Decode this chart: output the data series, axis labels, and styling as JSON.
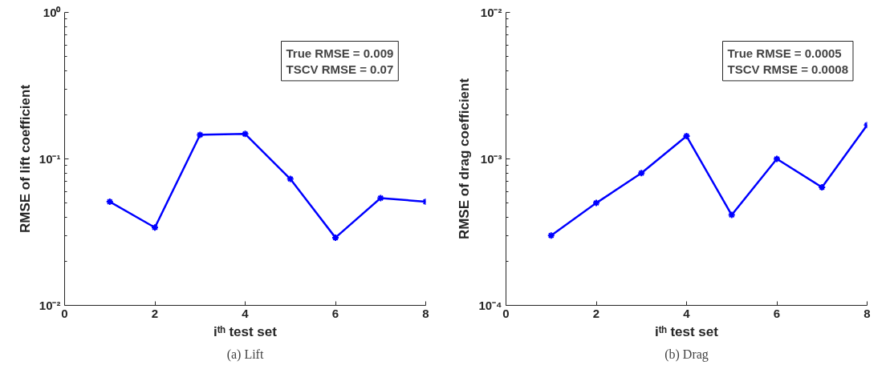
{
  "chart_data": [
    {
      "type": "line",
      "xlabel": "iᵗʰ test set",
      "ylabel": "RMSE of lift coefficient",
      "x": [
        1,
        2,
        3,
        4,
        5,
        6,
        7,
        8
      ],
      "series": [
        {
          "color": "#0000ff",
          "values": [
            0.051,
            0.034,
            0.146,
            0.148,
            0.073,
            0.029,
            0.054,
            0.051
          ]
        }
      ],
      "log": "y",
      "xlim": [
        0,
        8
      ],
      "xticks": [
        0,
        2,
        4,
        6,
        8
      ],
      "ylim": [
        0.01,
        1
      ],
      "yticks": [
        {
          "value": 0.01,
          "label": "10⁻²"
        },
        {
          "value": 0.1,
          "label": "10⁻¹"
        },
        {
          "value": 1,
          "label": "10⁰"
        }
      ],
      "grid": false,
      "marker": "cross",
      "line_style": "solid",
      "annotations": [
        "True RMSE = 0.009",
        "TSCV RMSE = 0.07",
        "(a) Lift"
      ]
    },
    {
      "type": "line",
      "xlabel": "iᵗʰ test set",
      "ylabel": "RMSE of drag coefficient",
      "x": [
        1,
        2,
        3,
        4,
        5,
        6,
        7,
        8
      ],
      "series": [
        {
          "color": "#0000ff",
          "values": [
            0.0003,
            0.0005,
            0.0008,
            0.00143,
            0.000414,
            0.001,
            0.00064,
            0.0017
          ]
        }
      ],
      "log": "y",
      "xlim": [
        0,
        8
      ],
      "xticks": [
        0,
        2,
        4,
        6,
        8
      ],
      "ylim": [
        0.0001,
        0.01
      ],
      "yticks": [
        {
          "value": 0.0001,
          "label": "10⁻⁴"
        },
        {
          "value": 0.001,
          "label": "10⁻³"
        },
        {
          "value": 0.01,
          "label": "10⁻²"
        }
      ],
      "grid": false,
      "marker": "cross",
      "line_style": "solid",
      "annotations": [
        "True RMSE = 0.0005",
        "TSCV RMSE = 0.0008",
        "(b) Drag"
      ]
    }
  ]
}
